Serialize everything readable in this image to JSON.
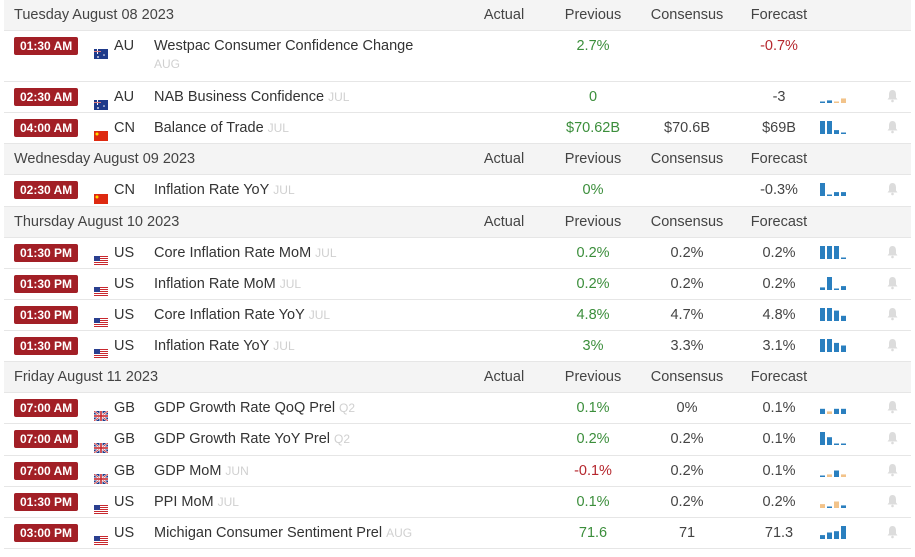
{
  "headers": {
    "actual": "Actual",
    "previous": "Previous",
    "consensus": "Consensus",
    "forecast": "Forecast"
  },
  "days": [
    {
      "date": "Tuesday August 08 2023",
      "events": [
        {
          "time": "01:30 AM",
          "flag": "au-flag-icon",
          "country": "AU",
          "name": "Westpac Consumer Confidence Change",
          "period": "AUG",
          "actual": "",
          "previous": "2.7%",
          "previous_color": "pos",
          "consensus": "",
          "forecast": "-0.7%",
          "forecast_color": "neg",
          "spark": [],
          "bell": false,
          "tall": true
        },
        {
          "time": "02:30 AM",
          "flag": "au-flag-icon",
          "country": "AU",
          "name": "NAB Business Confidence",
          "period": "JUL",
          "actual": "",
          "previous": "0",
          "previous_color": "pos",
          "consensus": "",
          "forecast": "-3",
          "forecast_color": "plain",
          "spark": [
            [
              0.1,
              "b"
            ],
            [
              0.2,
              "b"
            ],
            [
              0.05,
              "o"
            ],
            [
              0.35,
              "o"
            ]
          ],
          "bell": true
        },
        {
          "time": "04:00 AM",
          "flag": "cn-flag-icon",
          "country": "CN",
          "name": "Balance of Trade",
          "period": "JUL",
          "actual": "",
          "previous": "$70.62B",
          "previous_color": "pos",
          "consensus": "$70.6B",
          "forecast": "$69B",
          "forecast_color": "plain",
          "spark": [
            [
              1,
              "b"
            ],
            [
              1,
              "b"
            ],
            [
              0.3,
              "b"
            ],
            [
              0.1,
              "b"
            ]
          ],
          "bell": true
        }
      ]
    },
    {
      "date": "Wednesday August 09 2023",
      "events": [
        {
          "time": "02:30 AM",
          "flag": "cn-flag-icon",
          "country": "CN",
          "name": "Inflation Rate YoY",
          "period": "JUL",
          "actual": "",
          "previous": "0%",
          "previous_color": "pos",
          "consensus": "",
          "forecast": "-0.3%",
          "forecast_color": "plain",
          "spark": [
            [
              1,
              "b"
            ],
            [
              0.1,
              "b"
            ],
            [
              0.3,
              "b"
            ],
            [
              0.3,
              "b"
            ]
          ],
          "bell": true
        }
      ]
    },
    {
      "date": "Thursday August 10 2023",
      "events": [
        {
          "time": "01:30 PM",
          "flag": "us-flag-icon",
          "country": "US",
          "name": "Core Inflation Rate MoM",
          "period": "JUL",
          "actual": "",
          "previous": "0.2%",
          "previous_color": "pos",
          "consensus": "0.2%",
          "forecast": "0.2%",
          "forecast_color": "plain",
          "spark": [
            [
              1,
              "b"
            ],
            [
              1,
              "b"
            ],
            [
              1,
              "b"
            ],
            [
              0.1,
              "b"
            ]
          ],
          "bell": true
        },
        {
          "time": "01:30 PM",
          "flag": "us-flag-icon",
          "country": "US",
          "name": "Inflation Rate MoM",
          "period": "JUL",
          "actual": "",
          "previous": "0.2%",
          "previous_color": "pos",
          "consensus": "0.2%",
          "forecast": "0.2%",
          "forecast_color": "plain",
          "spark": [
            [
              0.2,
              "b"
            ],
            [
              1,
              "b"
            ],
            [
              0.1,
              "b"
            ],
            [
              0.3,
              "b"
            ]
          ],
          "bell": true
        },
        {
          "time": "01:30 PM",
          "flag": "us-flag-icon",
          "country": "US",
          "name": "Core Inflation Rate YoY",
          "period": "JUL",
          "actual": "",
          "previous": "4.8%",
          "previous_color": "pos",
          "consensus": "4.7%",
          "forecast": "4.8%",
          "forecast_color": "plain",
          "spark": [
            [
              1,
              "b"
            ],
            [
              1,
              "b"
            ],
            [
              0.8,
              "b"
            ],
            [
              0.4,
              "b"
            ]
          ],
          "bell": true
        },
        {
          "time": "01:30 PM",
          "flag": "us-flag-icon",
          "country": "US",
          "name": "Inflation Rate YoY",
          "period": "JUL",
          "actual": "",
          "previous": "3%",
          "previous_color": "pos",
          "consensus": "3.3%",
          "forecast": "3.1%",
          "forecast_color": "plain",
          "spark": [
            [
              1,
              "b"
            ],
            [
              1,
              "b"
            ],
            [
              0.7,
              "b"
            ],
            [
              0.5,
              "b"
            ]
          ],
          "bell": true
        }
      ]
    },
    {
      "date": "Friday August 11 2023",
      "events": [
        {
          "time": "07:00 AM",
          "flag": "gb-flag-icon",
          "country": "GB",
          "name": "GDP Growth Rate QoQ Prel",
          "period": "Q2",
          "actual": "",
          "previous": "0.1%",
          "previous_color": "pos",
          "consensus": "0%",
          "forecast": "0.1%",
          "forecast_color": "plain",
          "spark": [
            [
              0.4,
              "b"
            ],
            [
              0.2,
              "o"
            ],
            [
              0.4,
              "b"
            ],
            [
              0.4,
              "b"
            ]
          ],
          "bell": true
        },
        {
          "time": "07:00 AM",
          "flag": "gb-flag-icon",
          "country": "GB",
          "name": "GDP Growth Rate YoY Prel",
          "period": "Q2",
          "actual": "",
          "previous": "0.2%",
          "previous_color": "pos",
          "consensus": "0.2%",
          "forecast": "0.1%",
          "forecast_color": "plain",
          "spark": [
            [
              1,
              "b"
            ],
            [
              0.6,
              "b"
            ],
            [
              0.1,
              "b"
            ],
            [
              0.1,
              "b"
            ]
          ],
          "bell": true
        },
        {
          "time": "07:00 AM",
          "flag": "gb-flag-icon",
          "country": "GB",
          "name": "GDP MoM",
          "period": "JUN",
          "actual": "",
          "previous": "-0.1%",
          "previous_color": "neg",
          "consensus": "0.2%",
          "forecast": "0.1%",
          "forecast_color": "plain",
          "spark": [
            [
              0.1,
              "b"
            ],
            [
              0.2,
              "o"
            ],
            [
              0.5,
              "b"
            ],
            [
              0.2,
              "o"
            ]
          ],
          "bell": true
        },
        {
          "time": "01:30 PM",
          "flag": "us-flag-icon",
          "country": "US",
          "name": "PPI MoM",
          "period": "JUL",
          "actual": "",
          "previous": "0.1%",
          "previous_color": "pos",
          "consensus": "0.2%",
          "forecast": "0.2%",
          "forecast_color": "plain",
          "spark": [
            [
              0.3,
              "o"
            ],
            [
              0.1,
              "b"
            ],
            [
              0.5,
              "o"
            ],
            [
              0.2,
              "b"
            ]
          ],
          "bell": true
        },
        {
          "time": "03:00 PM",
          "flag": "us-flag-icon",
          "country": "US",
          "name": "Michigan Consumer Sentiment Prel",
          "period": "AUG",
          "actual": "",
          "previous": "71.6",
          "previous_color": "pos",
          "consensus": "71",
          "forecast": "71.3",
          "forecast_color": "plain",
          "spark": [
            [
              0.3,
              "b"
            ],
            [
              0.5,
              "b"
            ],
            [
              0.6,
              "b"
            ],
            [
              1,
              "b"
            ]
          ],
          "bell": true
        }
      ]
    }
  ],
  "colors": {
    "badge": "#a21f26",
    "positive": "#3b8e3b",
    "negative": "#b5262d",
    "spark_blue": "#2a7fbf",
    "spark_orange": "#f2c38a"
  }
}
